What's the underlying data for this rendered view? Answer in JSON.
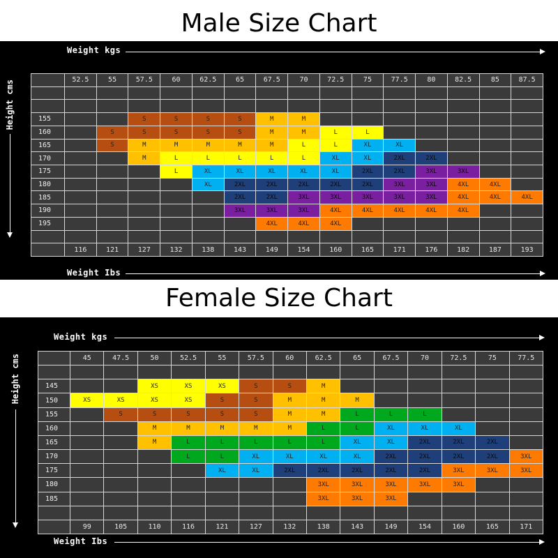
{
  "colors": {
    "XS": "#ffff00",
    "S": "#b54e10",
    "M": "#ffc000",
    "L_male": "#ffff00",
    "L_female": "#00a81e",
    "XL": "#00b0f0",
    "2XL": "#1f3f7a",
    "3XL_male": "#7a1fa0",
    "3XL_female": "#ff7a00",
    "4XL": "#ff7a00",
    "grid_bg": "#3a3a3a"
  },
  "chart_data": [
    {
      "type": "table",
      "title": "Male Size Chart",
      "xlabel_top": "Weight kgs",
      "xlabel_bottom": "Weight Ibs",
      "ylabel": "Height cms",
      "weights_kg": [
        "52.5",
        "55",
        "57.5",
        "60",
        "62.5",
        "65",
        "67.5",
        "70",
        "72.5",
        "75",
        "77.5",
        "80",
        "82.5",
        "85",
        "87.5"
      ],
      "weights_lbs": [
        "116",
        "121",
        "127",
        "132",
        "138",
        "143",
        "149",
        "154",
        "160",
        "165",
        "171",
        "176",
        "182",
        "187",
        "193"
      ],
      "heights": [
        "",
        "",
        "155",
        "160",
        "165",
        "170",
        "175",
        "180",
        "185",
        "190",
        "195",
        ""
      ],
      "rows": [
        [
          "",
          "",
          "",
          "",
          "",
          "",
          "",
          "",
          "",
          "",
          "",
          "",
          "",
          "",
          ""
        ],
        [
          "",
          "",
          "",
          "",
          "",
          "",
          "",
          "",
          "",
          "",
          "",
          "",
          "",
          "",
          ""
        ],
        [
          "",
          "",
          "S",
          "S",
          "S",
          "S",
          "M",
          "M",
          "",
          "",
          "",
          "",
          "",
          "",
          ""
        ],
        [
          "",
          "S",
          "S",
          "S",
          "S",
          "S",
          "M",
          "M",
          "L",
          "L",
          "",
          "",
          "",
          "",
          ""
        ],
        [
          "",
          "S",
          "M",
          "M",
          "M",
          "M",
          "M",
          "L",
          "L",
          "XL",
          "XL",
          "",
          "",
          "",
          ""
        ],
        [
          "",
          "",
          "M",
          "L",
          "L",
          "L",
          "L",
          "L",
          "XL",
          "XL",
          "2XL",
          "2XL",
          "",
          "",
          ""
        ],
        [
          "",
          "",
          "",
          "L",
          "XL",
          "XL",
          "XL",
          "XL",
          "XL",
          "2XL",
          "2XL",
          "3XL",
          "3XL",
          "",
          ""
        ],
        [
          "",
          "",
          "",
          "",
          "XL",
          "2XL",
          "2XL",
          "2XL",
          "2XL",
          "2XL",
          "3XL",
          "3XL",
          "4XL",
          "4XL",
          ""
        ],
        [
          "",
          "",
          "",
          "",
          "",
          "2XL",
          "2XL",
          "3XL",
          "3XL",
          "3XL",
          "3XL",
          "3XL",
          "4XL",
          "4XL",
          "4XL"
        ],
        [
          "",
          "",
          "",
          "",
          "",
          "3XL",
          "3XL",
          "3XL",
          "4XL",
          "4XL",
          "4XL",
          "4XL",
          "4XL",
          "",
          ""
        ],
        [
          "",
          "",
          "",
          "",
          "",
          "",
          "4XL",
          "4XL",
          "4XL",
          "",
          "",
          "",
          "",
          "",
          ""
        ],
        [
          "",
          "",
          "",
          "",
          "",
          "",
          "",
          "",
          "",
          "",
          "",
          "",
          "",
          "",
          ""
        ]
      ]
    },
    {
      "type": "table",
      "title": "Female Size Chart",
      "xlabel_top": "Weight kgs",
      "xlabel_bottom": "Weight Ibs",
      "ylabel": "Height cms",
      "weights_kg": [
        "45",
        "47.5",
        "50",
        "52.5",
        "55",
        "57.5",
        "60",
        "62.5",
        "65",
        "67.5",
        "70",
        "72.5",
        "75",
        "77.5"
      ],
      "weights_lbs": [
        "99",
        "105",
        "110",
        "116",
        "121",
        "127",
        "132",
        "138",
        "143",
        "149",
        "154",
        "160",
        "165",
        "171"
      ],
      "heights": [
        "",
        "145",
        "150",
        "155",
        "160",
        "165",
        "170",
        "175",
        "180",
        "185",
        ""
      ],
      "rows": [
        [
          "",
          "",
          "",
          "",
          "",
          "",
          "",
          "",
          "",
          "",
          "",
          "",
          "",
          ""
        ],
        [
          "",
          "",
          "XS",
          "XS",
          "XS",
          "S",
          "S",
          "M",
          "",
          "",
          "",
          "",
          "",
          ""
        ],
        [
          "XS",
          "XS",
          "XS",
          "XS",
          "S",
          "S",
          "M",
          "M",
          "M",
          "",
          "",
          "",
          "",
          ""
        ],
        [
          "",
          "S",
          "S",
          "S",
          "S",
          "S",
          "M",
          "M",
          "L",
          "L",
          "L",
          "",
          "",
          ""
        ],
        [
          "",
          "",
          "M",
          "M",
          "M",
          "M",
          "M",
          "L",
          "L",
          "XL",
          "XL",
          "XL",
          "",
          ""
        ],
        [
          "",
          "",
          "M",
          "L",
          "L",
          "L",
          "L",
          "L",
          "XL",
          "XL",
          "2XL",
          "2XL",
          "2XL",
          ""
        ],
        [
          "",
          "",
          "",
          "L",
          "L",
          "XL",
          "XL",
          "XL",
          "XL",
          "2XL",
          "2XL",
          "2XL",
          "2XL",
          "3XL"
        ],
        [
          "",
          "",
          "",
          "",
          "XL",
          "XL",
          "2XL",
          "2XL",
          "2XL",
          "2XL",
          "2XL",
          "3XL",
          "3XL",
          "3XL"
        ],
        [
          "",
          "",
          "",
          "",
          "",
          "",
          "",
          "3XL",
          "3XL",
          "3XL",
          "3XL",
          "3XL",
          "",
          ""
        ],
        [
          "",
          "",
          "",
          "",
          "",
          "",
          "",
          "3XL",
          "3XL",
          "3XL",
          "",
          "",
          "",
          ""
        ],
        [
          "",
          "",
          "",
          "",
          "",
          "",
          "",
          "",
          "",
          "",
          "",
          "",
          "",
          ""
        ]
      ]
    }
  ]
}
